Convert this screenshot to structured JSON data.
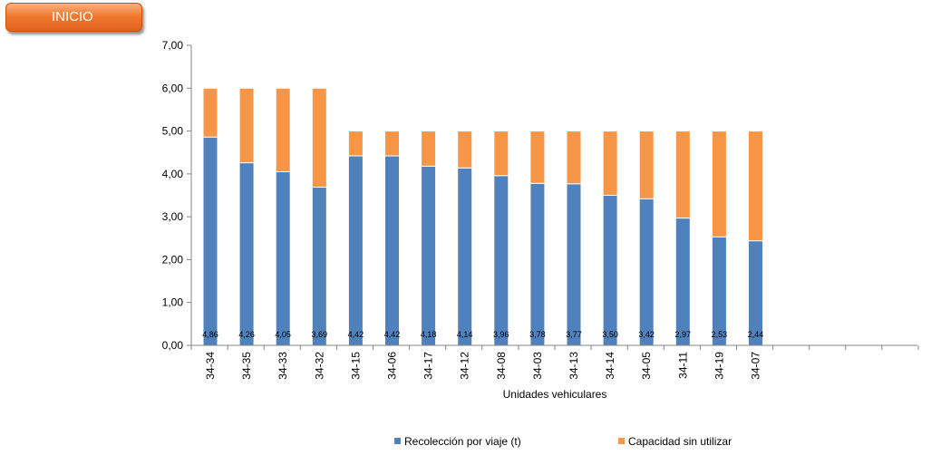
{
  "button": {
    "label": "INICIO"
  },
  "chart_data": {
    "type": "bar",
    "stacked": true,
    "title": "",
    "xlabel": "Unidades vehiculares",
    "ylabel": "",
    "ylim": [
      0,
      7
    ],
    "yticks": [
      "0,00",
      "1,00",
      "2,00",
      "3,00",
      "4,00",
      "5,00",
      "6,00",
      "7,00"
    ],
    "grid": false,
    "legend_position": "bottom",
    "categories": [
      "34-34",
      "34-35",
      "34-33",
      "34-32",
      "34-15",
      "34-06",
      "34-17",
      "34-12",
      "34-08",
      "34-03",
      "34-13",
      "34-14",
      "34-05",
      "34-11",
      "34-19",
      "34-07"
    ],
    "data_labels": [
      "4,86",
      "4,26",
      "4,05",
      "3,69",
      "4,42",
      "4,42",
      "4,18",
      "4,14",
      "3,96",
      "3,78",
      "3,77",
      "3,50",
      "3,42",
      "2,97",
      "2,53",
      "2,44"
    ],
    "series": [
      {
        "name": "Recolección por viaje (t)",
        "color": "#4f81bd",
        "values": [
          4.86,
          4.26,
          4.05,
          3.69,
          4.42,
          4.42,
          4.18,
          4.14,
          3.96,
          3.78,
          3.77,
          3.5,
          3.42,
          2.97,
          2.53,
          2.44
        ]
      },
      {
        "name": "Capacidad sin utilizar",
        "color": "#f79646",
        "values": [
          1.14,
          1.74,
          1.95,
          2.31,
          0.58,
          0.58,
          0.82,
          0.86,
          1.04,
          1.22,
          1.23,
          1.5,
          1.58,
          2.03,
          2.47,
          2.56
        ]
      }
    ]
  }
}
